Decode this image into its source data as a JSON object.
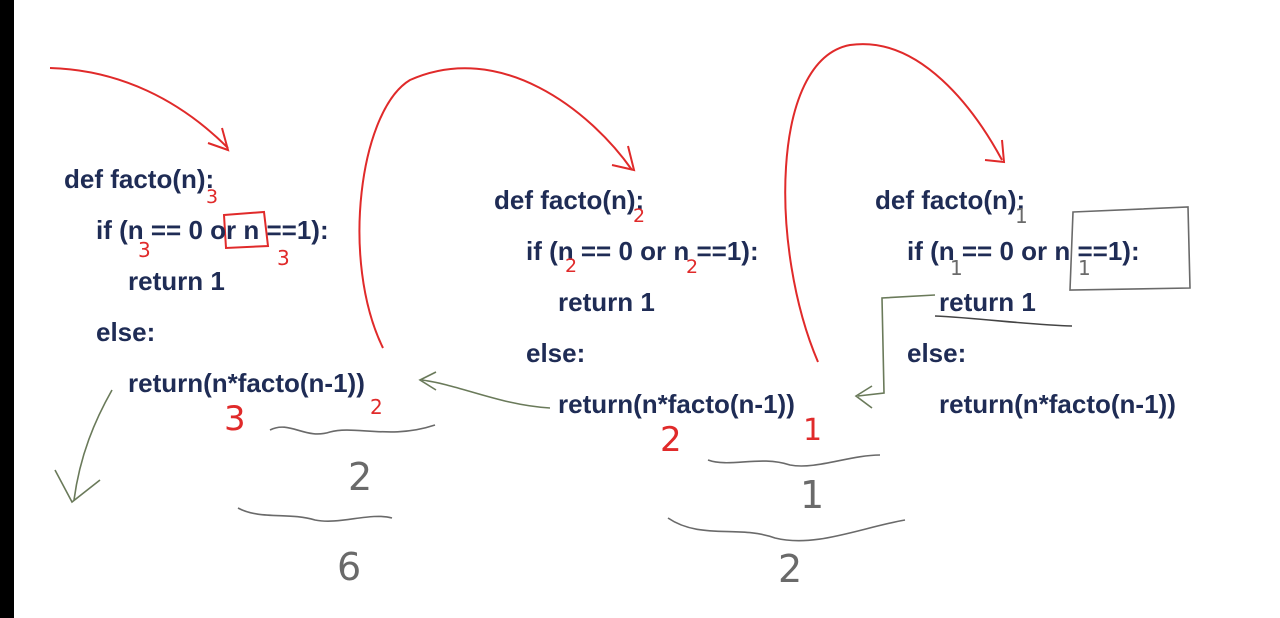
{
  "frames": [
    {
      "code": [
        "def facto(n):",
        "if (n == 0 or n ==1):",
        "return 1",
        "else:",
        "return(n*facto(n-1))"
      ],
      "annotations": {
        "n_value": "3",
        "n_check_1": "3",
        "n_check_2": "3",
        "outer_n": "3",
        "inner_arg": "2",
        "result_inner": "2",
        "result_total": "6"
      }
    },
    {
      "code": [
        "def facto(n):",
        "if (n == 0 or n ==1):",
        "return 1",
        "else:",
        "return(n*facto(n-1))"
      ],
      "annotations": {
        "n_value": "2",
        "n_check_1": "2",
        "n_check_2": "2",
        "outer_n": "2",
        "inner_arg": "1",
        "result_inner": "1",
        "result_total": "2"
      }
    },
    {
      "code": [
        "def facto(n):",
        "if (n == 0 or n ==1):",
        "return 1",
        "else:",
        "return(n*facto(n-1))"
      ],
      "annotations": {
        "n_value": "1",
        "n_check_1": "1",
        "n_check_2": "1"
      }
    }
  ],
  "colors": {
    "code": "#1f2c55",
    "call_arrow": "#e02a2a",
    "return_arrow": "#6a7a5a",
    "annotation_red": "#e02a2a",
    "annotation_grey": "#6a6a6a"
  }
}
